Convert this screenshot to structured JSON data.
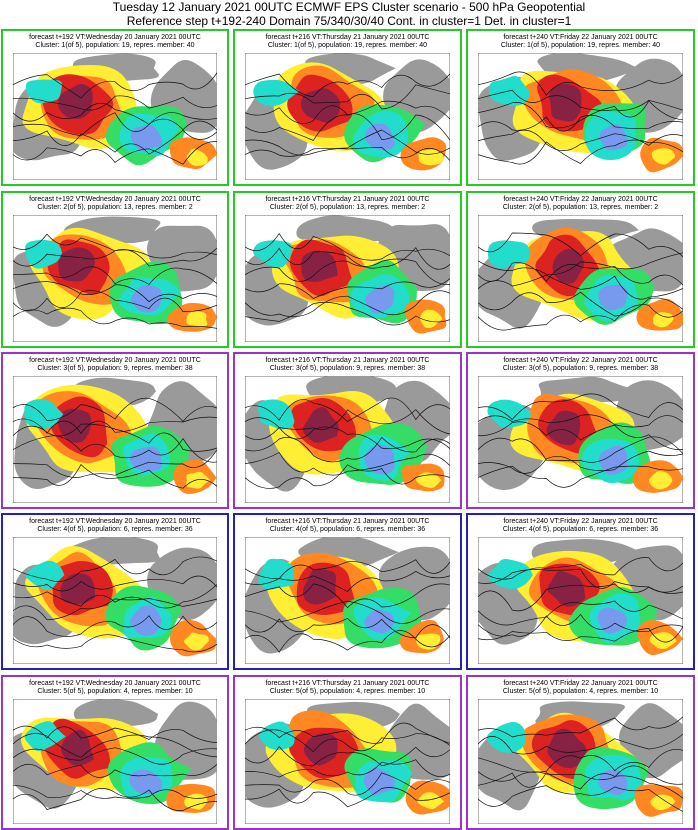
{
  "header": {
    "title": "Tuesday 12 January 2021 00UTC ECMWF EPS Cluster scenario - 500 hPa Geopotential",
    "subtitle": "Reference step t+192-240 Domain 75/340/30/40 Cont. in cluster=1 Det. in cluster=1"
  },
  "colors": {
    "green_frame": "#22cc22",
    "purple_frame": "#9933cc",
    "blue_frame": "#2222bb",
    "land_gray": "#9a9a9a",
    "sea_white": "#ffffff",
    "pos_yellow": "#ffee33",
    "pos_orange": "#ff8822",
    "pos_red": "#dd2222",
    "pos_dark": "#882244",
    "neg_cyan": "#22ddcc",
    "neg_green": "#33dd66",
    "neg_blue": "#7799ee",
    "neg_dark": "#2233dd"
  },
  "columns": [
    "forecast t+192 VT:Wednesday 20 January 2021 00UTC",
    "forecast t+216 VT:Thursday 21 January 2021 00UTC",
    "forecast t+240 VT:Friday 22 January 2021 00UTC"
  ],
  "rows": [
    {
      "frame": "green",
      "caption": "Cluster: 1(of 5), population: 19, repres. member: 40"
    },
    {
      "frame": "green",
      "caption": "Cluster: 2(of 5), population: 13, repres. member: 2"
    },
    {
      "frame": "purple",
      "caption": "Cluster: 3(of 5), population: 9, repres. member: 38"
    },
    {
      "frame": "blue",
      "caption": "Cluster: 4(of 5), population: 6, repres. member: 36"
    },
    {
      "frame": "purple",
      "caption": "Cluster: 5(of 5), population: 4, repres. member: 10"
    }
  ]
}
